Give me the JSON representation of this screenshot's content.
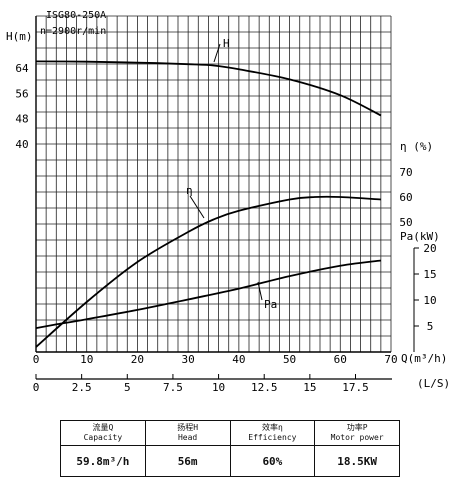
{
  "header": {
    "model": "ISG80-250A",
    "speed": "n=2900r/min"
  },
  "axes": {
    "head_unit": "H(m)",
    "eff_unit": "η (%)",
    "power_unit": "Pa(kW)",
    "flow_unit_m3h": "Q(m³/h)",
    "flow_unit_ls": "(L/S)"
  },
  "curve_labels": {
    "head": "H",
    "efficiency": "η",
    "power": "Pa"
  },
  "chart_data": [
    {
      "type": "line",
      "title": "ISG80-250A  n=2900r/min",
      "xlabel": "Q(m³/h)",
      "secondary_xlabel": "(L/S)",
      "xlim": [
        0,
        70
      ],
      "x_ticks": [
        0,
        10,
        20,
        30,
        40,
        50,
        60,
        70
      ],
      "x_tick_labels": [
        "0",
        "10",
        "20",
        "30",
        "40",
        "50",
        "60",
        "70"
      ],
      "secondary_x_ticks": [
        "0",
        "2.5",
        "5",
        "7.5",
        "10",
        "12.5",
        "15",
        "17.5"
      ],
      "grid": true,
      "series": [
        {
          "name": "H",
          "axis": "H(m)",
          "y_ticks": [
            40,
            48,
            56,
            64
          ],
          "x": [
            0,
            10,
            20,
            30,
            35,
            40,
            50,
            60,
            68
          ],
          "y": [
            66.1,
            66.0,
            65.7,
            65.2,
            64.8,
            63.6,
            60.4,
            55.4,
            49.0
          ]
        },
        {
          "name": "η",
          "axis": "η (%)",
          "y_ticks": [
            50,
            60,
            70
          ],
          "x": [
            0,
            10,
            20,
            30,
            35,
            40,
            50,
            55,
            60,
            68
          ],
          "y": [
            0,
            18,
            34,
            46,
            51,
            54.5,
            59,
            60,
            60,
            59
          ]
        },
        {
          "name": "Pa",
          "axis": "Pa(kW)",
          "y_ticks": [
            5,
            10,
            15,
            20
          ],
          "x": [
            0,
            4,
            10,
            20,
            30,
            40,
            50,
            60,
            68
          ],
          "y": [
            4.6,
            5.3,
            6.3,
            8.1,
            10.1,
            12.2,
            14.6,
            16.6,
            17.6
          ]
        }
      ]
    }
  ],
  "spec_table": {
    "headers": [
      {
        "cn": "流量Q",
        "en": "Capacity"
      },
      {
        "cn": "扬程H",
        "en": "Head"
      },
      {
        "cn": "效率η",
        "en": "Efficiency"
      },
      {
        "cn": "功率P",
        "en": "Motor power"
      }
    ],
    "values": [
      "59.8m³/h",
      "56m",
      "60%",
      "18.5KW"
    ]
  }
}
